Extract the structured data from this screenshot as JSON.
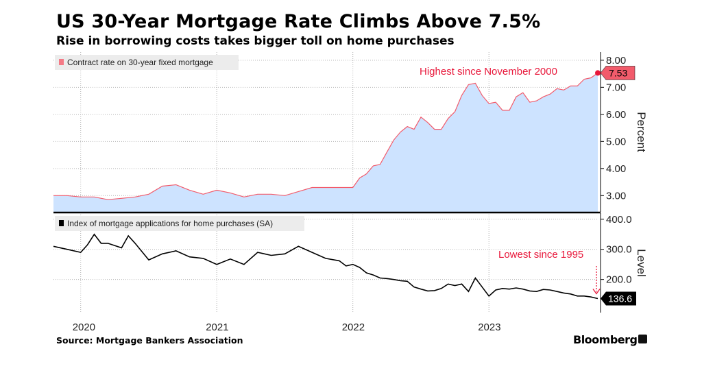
{
  "header": {
    "title": "US 30-Year Mortgage Rate Climbs Above 7.5%",
    "subtitle": "Rise in borrowing costs takes bigger toll on home purchases"
  },
  "footer": {
    "source": "Source: Mortgage Bankers Association",
    "brand": "Bloomberg",
    "brand_icon": "bloomberg-terminal-icon"
  },
  "colors": {
    "rate_line": "#f25b6b",
    "rate_fill": "#cde3ff",
    "rate_legend_swatch": "#f47a86",
    "highlight": "#e8173a",
    "apps_line": "#000000",
    "grid": "#b4b4b4",
    "divider": "#000000",
    "legend_bg": "#ececec"
  },
  "chart_data": [
    {
      "type": "area",
      "legend": "Contract rate on 30-year fixed mortgage",
      "ylabel": "Percent",
      "ylim": [
        2.4,
        8.3
      ],
      "yticks": [
        3,
        4,
        5,
        6,
        7,
        8
      ],
      "ytick_labels": [
        "3.00",
        "4.00",
        "5.00",
        "6.00",
        "7.00",
        "8.00"
      ],
      "grid": true,
      "legend_position": "top-left",
      "last_value_label": "7.53",
      "annotation": "Highest since November 2000",
      "x": [
        2019.8,
        2019.9,
        2020.0,
        2020.1,
        2020.2,
        2020.3,
        2020.4,
        2020.5,
        2020.6,
        2020.7,
        2020.8,
        2020.9,
        2021.0,
        2021.1,
        2021.2,
        2021.3,
        2021.4,
        2021.5,
        2021.6,
        2021.7,
        2021.8,
        2021.9,
        2022.0,
        2022.05,
        2022.1,
        2022.15,
        2022.2,
        2022.25,
        2022.3,
        2022.35,
        2022.4,
        2022.45,
        2022.5,
        2022.55,
        2022.6,
        2022.65,
        2022.7,
        2022.75,
        2022.8,
        2022.85,
        2022.9,
        2022.95,
        2023.0,
        2023.05,
        2023.1,
        2023.15,
        2023.2,
        2023.25,
        2023.3,
        2023.35,
        2023.4,
        2023.45,
        2023.5,
        2023.55,
        2023.6,
        2023.65,
        2023.7,
        2023.75,
        2023.8
      ],
      "y": [
        3.0,
        3.0,
        2.95,
        2.95,
        2.85,
        2.9,
        2.95,
        3.05,
        3.35,
        3.4,
        3.2,
        3.05,
        3.2,
        3.1,
        2.95,
        3.05,
        3.05,
        3.0,
        3.15,
        3.3,
        3.3,
        3.3,
        3.3,
        3.65,
        3.8,
        4.1,
        4.15,
        4.6,
        5.05,
        5.35,
        5.55,
        5.45,
        5.9,
        5.7,
        5.45,
        5.45,
        5.85,
        6.1,
        6.7,
        7.1,
        7.15,
        6.7,
        6.4,
        6.45,
        6.15,
        6.15,
        6.65,
        6.8,
        6.45,
        6.5,
        6.65,
        6.75,
        6.95,
        6.9,
        7.05,
        7.05,
        7.3,
        7.35,
        7.53
      ]
    },
    {
      "type": "line",
      "legend": "Index of mortgage applications for home purchases (SA)",
      "ylabel": "Level",
      "ylim": [
        90,
        420
      ],
      "yticks": [
        200,
        300,
        400
      ],
      "ytick_labels": [
        "200.0",
        "300.0",
        "400.0"
      ],
      "grid": true,
      "legend_position": "top-left",
      "last_value_label": "136.6",
      "annotation": "Lowest since 1995",
      "x": [
        2019.8,
        2019.9,
        2020.0,
        2020.05,
        2020.1,
        2020.15,
        2020.2,
        2020.3,
        2020.35,
        2020.4,
        2020.5,
        2020.6,
        2020.7,
        2020.8,
        2020.9,
        2021.0,
        2021.1,
        2021.2,
        2021.3,
        2021.4,
        2021.5,
        2021.6,
        2021.7,
        2021.8,
        2021.9,
        2021.95,
        2022.0,
        2022.05,
        2022.1,
        2022.15,
        2022.2,
        2022.25,
        2022.3,
        2022.35,
        2022.4,
        2022.45,
        2022.5,
        2022.55,
        2022.6,
        2022.65,
        2022.7,
        2022.75,
        2022.8,
        2022.85,
        2022.9,
        2022.95,
        2023.0,
        2023.05,
        2023.1,
        2023.15,
        2023.2,
        2023.25,
        2023.3,
        2023.35,
        2023.4,
        2023.45,
        2023.5,
        2023.55,
        2023.6,
        2023.65,
        2023.7,
        2023.75,
        2023.8
      ],
      "y": [
        310,
        300,
        290,
        315,
        350,
        320,
        320,
        305,
        345,
        320,
        265,
        285,
        295,
        275,
        270,
        250,
        268,
        250,
        290,
        280,
        285,
        310,
        290,
        270,
        262,
        245,
        250,
        240,
        222,
        215,
        205,
        203,
        200,
        196,
        194,
        175,
        168,
        162,
        163,
        170,
        185,
        180,
        185,
        160,
        205,
        175,
        145,
        165,
        170,
        168,
        172,
        168,
        162,
        160,
        167,
        165,
        160,
        155,
        152,
        145,
        145,
        142,
        136.6
      ]
    }
  ],
  "x_axis": {
    "labels": [
      "2020",
      "2021",
      "2022",
      "2023"
    ],
    "label_x": [
      2020.0,
      2021.0,
      2022.0,
      2023.0
    ],
    "xlim": [
      2019.8,
      2023.8
    ]
  }
}
